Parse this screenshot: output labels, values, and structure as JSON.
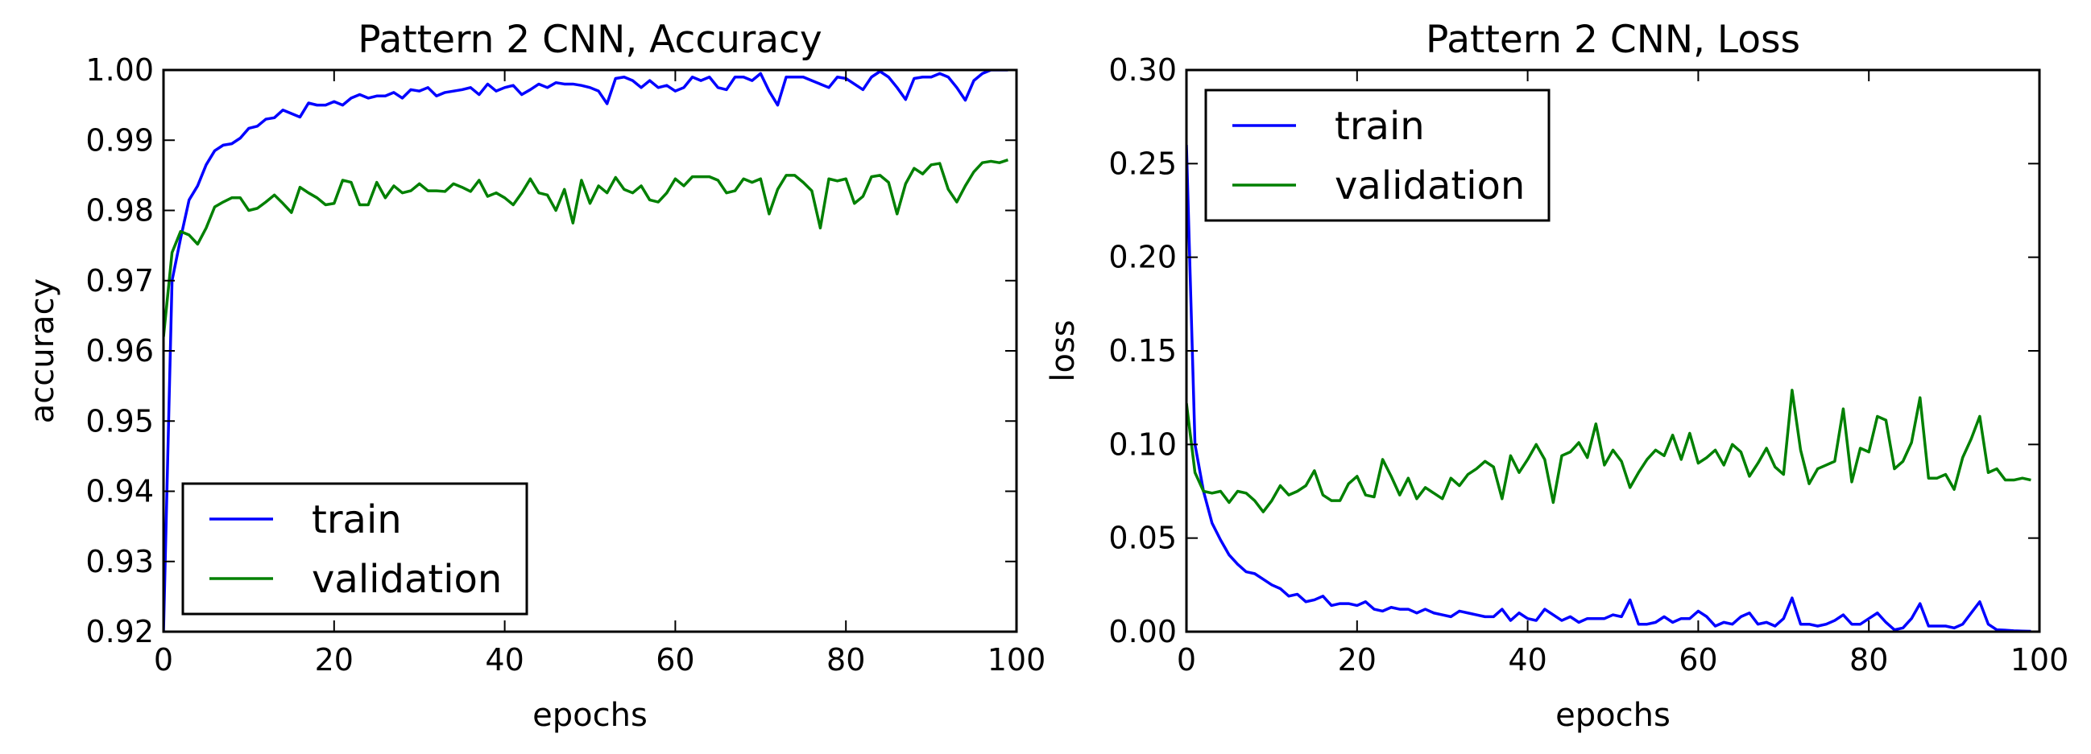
{
  "chart_data": [
    {
      "type": "line",
      "title": "Pattern 2 CNN, Accuracy",
      "xlabel": "epochs",
      "ylabel": "accuracy",
      "xlim": [
        0,
        100
      ],
      "ylim": [
        0.92,
        1.0
      ],
      "xticks": [
        "0",
        "20",
        "40",
        "60",
        "80",
        "100"
      ],
      "yticks": [
        "0.92",
        "0.93",
        "0.94",
        "0.95",
        "0.96",
        "0.97",
        "0.98",
        "0.99",
        "1.00"
      ],
      "legend_position": "lower-left",
      "grid": false,
      "x": [
        0,
        1,
        2,
        3,
        4,
        5,
        6,
        7,
        8,
        9,
        10,
        11,
        12,
        13,
        14,
        15,
        16,
        17,
        18,
        19,
        20,
        21,
        22,
        23,
        24,
        25,
        26,
        27,
        28,
        29,
        30,
        31,
        32,
        33,
        34,
        35,
        36,
        37,
        38,
        39,
        40,
        41,
        42,
        43,
        44,
        45,
        46,
        47,
        48,
        49,
        50,
        51,
        52,
        53,
        54,
        55,
        56,
        57,
        58,
        59,
        60,
        61,
        62,
        63,
        64,
        65,
        66,
        67,
        68,
        69,
        70,
        71,
        72,
        73,
        74,
        75,
        76,
        77,
        78,
        79,
        80,
        81,
        82,
        83,
        84,
        85,
        86,
        87,
        88,
        89,
        90,
        91,
        92,
        93,
        94,
        95,
        96,
        97,
        98,
        99
      ],
      "series": [
        {
          "name": "train",
          "color": "#0000ff",
          "values": [
            0.92,
            0.97,
            0.976,
            0.9815,
            0.9835,
            0.9865,
            0.9885,
            0.9893,
            0.9895,
            0.9903,
            0.9917,
            0.992,
            0.993,
            0.9932,
            0.9943,
            0.9938,
            0.9933,
            0.9953,
            0.995,
            0.995,
            0.9955,
            0.995,
            0.996,
            0.9965,
            0.996,
            0.9963,
            0.9963,
            0.9968,
            0.996,
            0.9972,
            0.997,
            0.9975,
            0.9963,
            0.9968,
            0.997,
            0.9972,
            0.9975,
            0.9965,
            0.998,
            0.997,
            0.9975,
            0.9978,
            0.9965,
            0.9972,
            0.998,
            0.9975,
            0.9982,
            0.998,
            0.998,
            0.9978,
            0.9975,
            0.997,
            0.9952,
            0.9988,
            0.999,
            0.9985,
            0.9975,
            0.9985,
            0.9975,
            0.9978,
            0.997,
            0.9975,
            0.999,
            0.9985,
            0.999,
            0.9975,
            0.9972,
            0.999,
            0.999,
            0.9985,
            0.9995,
            0.997,
            0.995,
            0.999,
            0.999,
            0.999,
            0.9985,
            0.998,
            0.9975,
            0.999,
            0.9988,
            0.998,
            0.9972,
            0.999,
            0.9998,
            0.999,
            0.9975,
            0.9958,
            0.9988,
            0.999,
            0.999,
            0.9995,
            0.999,
            0.9975,
            0.9957,
            0.9985,
            0.9995,
            1.0,
            1.0,
            1.0
          ]
        },
        {
          "name": "validation",
          "color": "#008000",
          "values": [
            0.962,
            0.974,
            0.977,
            0.9765,
            0.9752,
            0.9775,
            0.9805,
            0.9812,
            0.9818,
            0.9818,
            0.98,
            0.9803,
            0.9812,
            0.9822,
            0.981,
            0.9797,
            0.9833,
            0.9825,
            0.9818,
            0.9808,
            0.981,
            0.9843,
            0.984,
            0.9808,
            0.9808,
            0.984,
            0.9818,
            0.9835,
            0.9825,
            0.9828,
            0.9838,
            0.9828,
            0.9828,
            0.9827,
            0.9838,
            0.9833,
            0.9827,
            0.9843,
            0.982,
            0.9825,
            0.9818,
            0.9808,
            0.9825,
            0.9845,
            0.9825,
            0.9822,
            0.98,
            0.983,
            0.9782,
            0.9843,
            0.981,
            0.9835,
            0.9825,
            0.9847,
            0.983,
            0.9825,
            0.9835,
            0.9815,
            0.9812,
            0.9825,
            0.9845,
            0.9835,
            0.9848,
            0.9848,
            0.9848,
            0.9843,
            0.9825,
            0.9828,
            0.9845,
            0.984,
            0.9845,
            0.9795,
            0.983,
            0.985,
            0.985,
            0.984,
            0.9828,
            0.9775,
            0.9845,
            0.9842,
            0.9845,
            0.981,
            0.982,
            0.9848,
            0.985,
            0.984,
            0.9795,
            0.9838,
            0.986,
            0.9852,
            0.9865,
            0.9867,
            0.983,
            0.9812,
            0.9835,
            0.9855,
            0.9868,
            0.987,
            0.9868,
            0.9872
          ]
        }
      ]
    },
    {
      "type": "line",
      "title": "Pattern 2 CNN, Loss",
      "xlabel": "epochs",
      "ylabel": "loss",
      "xlim": [
        0,
        100
      ],
      "ylim": [
        0.0,
        0.3
      ],
      "xticks": [
        "0",
        "20",
        "40",
        "60",
        "80",
        "100"
      ],
      "yticks": [
        "0.00",
        "0.05",
        "0.10",
        "0.15",
        "0.20",
        "0.25",
        "0.30"
      ],
      "legend_position": "upper-left",
      "grid": false,
      "x": [
        0,
        1,
        2,
        3,
        4,
        5,
        6,
        7,
        8,
        9,
        10,
        11,
        12,
        13,
        14,
        15,
        16,
        17,
        18,
        19,
        20,
        21,
        22,
        23,
        24,
        25,
        26,
        27,
        28,
        29,
        30,
        31,
        32,
        33,
        34,
        35,
        36,
        37,
        38,
        39,
        40,
        41,
        42,
        43,
        44,
        45,
        46,
        47,
        48,
        49,
        50,
        51,
        52,
        53,
        54,
        55,
        56,
        57,
        58,
        59,
        60,
        61,
        62,
        63,
        64,
        65,
        66,
        67,
        68,
        69,
        70,
        71,
        72,
        73,
        74,
        75,
        76,
        77,
        78,
        79,
        80,
        81,
        82,
        83,
        84,
        85,
        86,
        87,
        88,
        89,
        90,
        91,
        92,
        93,
        94,
        95,
        96,
        97,
        98,
        99
      ],
      "series": [
        {
          "name": "train",
          "color": "#0000ff",
          "values": [
            0.26,
            0.1,
            0.075,
            0.058,
            0.049,
            0.041,
            0.036,
            0.032,
            0.031,
            0.028,
            0.025,
            0.023,
            0.019,
            0.02,
            0.016,
            0.017,
            0.019,
            0.014,
            0.015,
            0.015,
            0.014,
            0.016,
            0.012,
            0.011,
            0.013,
            0.012,
            0.012,
            0.01,
            0.012,
            0.01,
            0.009,
            0.008,
            0.011,
            0.01,
            0.009,
            0.008,
            0.008,
            0.012,
            0.006,
            0.01,
            0.007,
            0.006,
            0.012,
            0.009,
            0.006,
            0.008,
            0.005,
            0.007,
            0.007,
            0.007,
            0.009,
            0.008,
            0.017,
            0.004,
            0.004,
            0.005,
            0.008,
            0.005,
            0.007,
            0.007,
            0.011,
            0.008,
            0.003,
            0.005,
            0.004,
            0.008,
            0.01,
            0.004,
            0.005,
            0.003,
            0.007,
            0.018,
            0.004,
            0.004,
            0.003,
            0.004,
            0.006,
            0.009,
            0.004,
            0.004,
            0.007,
            0.01,
            0.005,
            0.001,
            0.002,
            0.007,
            0.015,
            0.003,
            0.003,
            0.003,
            0.002,
            0.004,
            0.01,
            0.016,
            0.004,
            0.001,
            0.0008,
            0.0005,
            0.0003,
            0.0002
          ]
        },
        {
          "name": "validation",
          "color": "#008000",
          "values": [
            0.122,
            0.085,
            0.075,
            0.074,
            0.075,
            0.069,
            0.075,
            0.074,
            0.07,
            0.064,
            0.07,
            0.078,
            0.073,
            0.075,
            0.078,
            0.086,
            0.073,
            0.07,
            0.07,
            0.079,
            0.083,
            0.073,
            0.072,
            0.092,
            0.083,
            0.073,
            0.082,
            0.071,
            0.077,
            0.074,
            0.071,
            0.082,
            0.078,
            0.084,
            0.087,
            0.091,
            0.088,
            0.071,
            0.094,
            0.085,
            0.092,
            0.1,
            0.092,
            0.069,
            0.094,
            0.096,
            0.101,
            0.093,
            0.111,
            0.089,
            0.097,
            0.091,
            0.077,
            0.085,
            0.092,
            0.097,
            0.094,
            0.105,
            0.092,
            0.106,
            0.09,
            0.093,
            0.097,
            0.089,
            0.1,
            0.096,
            0.083,
            0.09,
            0.098,
            0.088,
            0.084,
            0.129,
            0.097,
            0.079,
            0.087,
            0.089,
            0.091,
            0.119,
            0.08,
            0.098,
            0.096,
            0.115,
            0.113,
            0.087,
            0.091,
            0.101,
            0.125,
            0.082,
            0.082,
            0.084,
            0.076,
            0.093,
            0.103,
            0.115,
            0.085,
            0.087,
            0.081,
            0.081,
            0.082,
            0.081
          ]
        }
      ]
    }
  ]
}
